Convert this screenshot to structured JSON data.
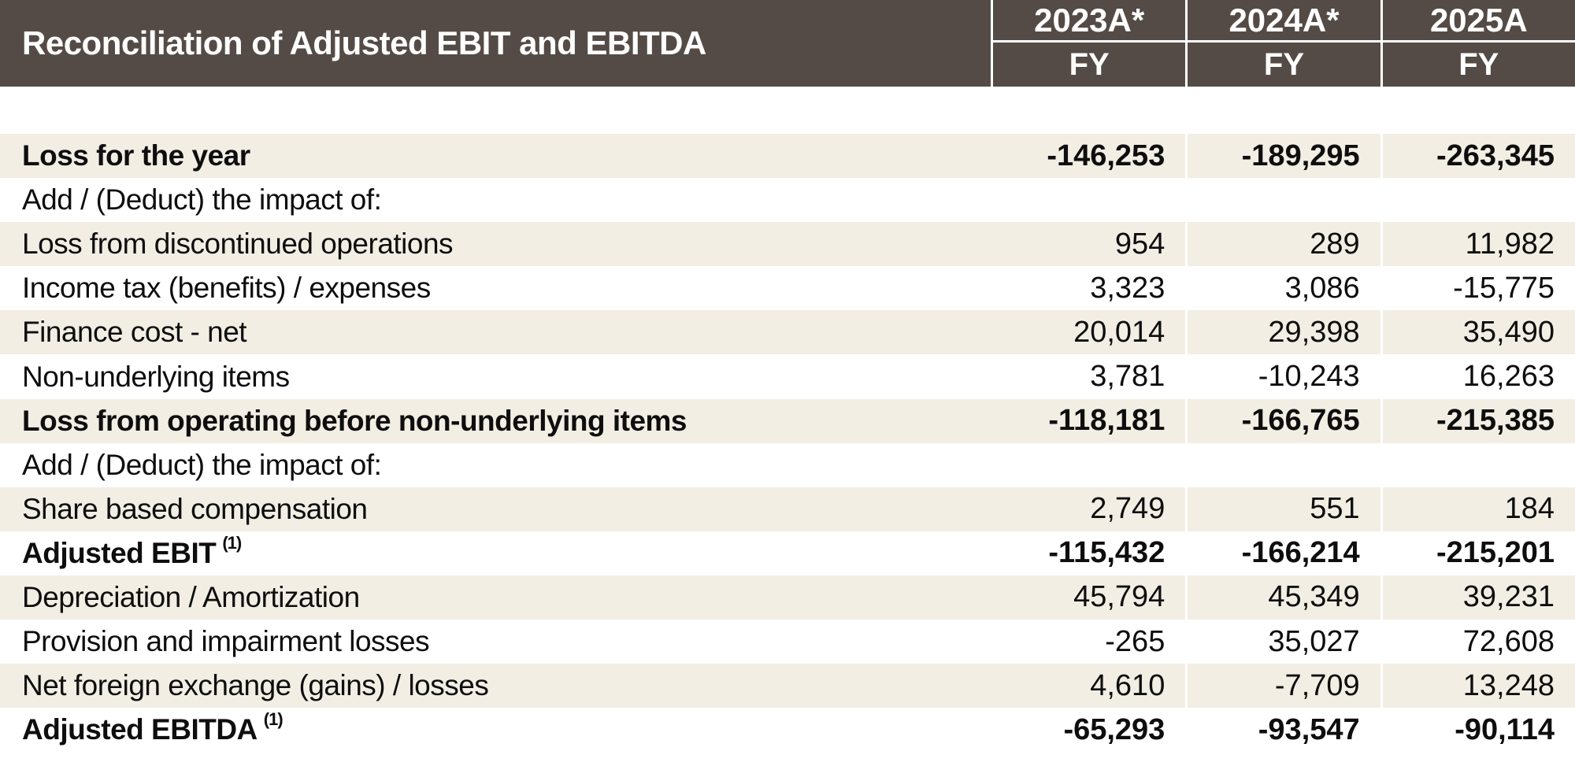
{
  "table": {
    "title": "Reconciliation of Adjusted EBIT and EBITDA",
    "columns": [
      {
        "year": "2023A*",
        "period": "FY"
      },
      {
        "year": "2024A*",
        "period": "FY"
      },
      {
        "year": "2025A",
        "period": "FY"
      }
    ],
    "rows": [
      {
        "label": "Loss for the year",
        "sup": "",
        "bold": true,
        "values": [
          "-146,253",
          "-189,295",
          "-263,345"
        ]
      },
      {
        "label": "Add / (Deduct) the impact of:",
        "sup": "",
        "bold": false,
        "values": [
          "",
          "",
          ""
        ]
      },
      {
        "label": "Loss from discontinued operations",
        "sup": "",
        "bold": false,
        "values": [
          "954",
          "289",
          "11,982"
        ]
      },
      {
        "label": "Income tax (benefits) / expenses",
        "sup": "",
        "bold": false,
        "values": [
          "3,323",
          "3,086",
          "-15,775"
        ]
      },
      {
        "label": "Finance cost - net",
        "sup": "",
        "bold": false,
        "values": [
          "20,014",
          "29,398",
          "35,490"
        ]
      },
      {
        "label": "Non-underlying items",
        "sup": "",
        "bold": false,
        "values": [
          "3,781",
          "-10,243",
          "16,263"
        ]
      },
      {
        "label": "Loss from operating before non-underlying items",
        "sup": "",
        "bold": true,
        "values": [
          "-118,181",
          "-166,765",
          "-215,385"
        ]
      },
      {
        "label": "Add / (Deduct) the impact of:",
        "sup": "",
        "bold": false,
        "values": [
          "",
          "",
          ""
        ]
      },
      {
        "label": "Share based compensation",
        "sup": "",
        "bold": false,
        "values": [
          "2,749",
          "551",
          "184"
        ]
      },
      {
        "label": "Adjusted EBIT",
        "sup": "(1)",
        "bold": true,
        "values": [
          "-115,432",
          "-166,214",
          "-215,201"
        ]
      },
      {
        "label": "Depreciation / Amortization",
        "sup": "",
        "bold": false,
        "values": [
          "45,794",
          "45,349",
          "39,231"
        ]
      },
      {
        "label": "Provision and impairment losses",
        "sup": "",
        "bold": false,
        "values": [
          "-265",
          "35,027",
          "72,608"
        ]
      },
      {
        "label": "Net foreign exchange (gains) / losses",
        "sup": "",
        "bold": false,
        "values": [
          "4,610",
          "-7,709",
          "13,248"
        ]
      },
      {
        "label": "Adjusted EBITDA",
        "sup": "(1)",
        "bold": true,
        "values": [
          "-65,293",
          "-93,547",
          "-90,114"
        ]
      }
    ]
  },
  "colors": {
    "header_bg": "#554B46",
    "header_text": "#FFFFFF",
    "stripe_bg": "#F3EEE4",
    "body_text": "#0E0E0E",
    "divider": "#FFFFFF"
  }
}
